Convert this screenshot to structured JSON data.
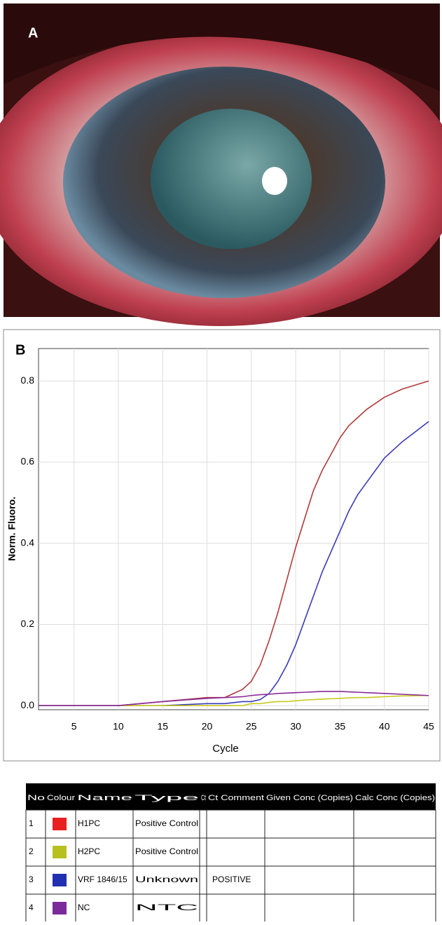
{
  "panels": {
    "a": "A",
    "b": "B"
  },
  "chart_data": {
    "type": "line",
    "xlabel": "Cycle",
    "ylabel": "Norm. Fluoro.",
    "x": [
      1,
      5,
      10,
      15,
      20,
      22,
      24,
      25,
      26,
      27,
      28,
      29,
      30,
      31,
      32,
      33,
      34,
      35,
      36,
      37,
      38,
      40,
      42,
      45
    ],
    "series": [
      {
        "color": "#b03a3a",
        "values": [
          0,
          0,
          0,
          0.01,
          0.02,
          0.02,
          0.04,
          0.06,
          0.1,
          0.16,
          0.23,
          0.31,
          0.39,
          0.46,
          0.53,
          0.58,
          0.62,
          0.66,
          0.69,
          0.71,
          0.73,
          0.76,
          0.78,
          0.8
        ]
      },
      {
        "color": "#3a3ab8",
        "values": [
          0,
          0,
          0,
          0,
          0.005,
          0.005,
          0.01,
          0.01,
          0.015,
          0.03,
          0.06,
          0.1,
          0.15,
          0.21,
          0.27,
          0.33,
          0.38,
          0.43,
          0.48,
          0.52,
          0.55,
          0.61,
          0.65,
          0.7
        ]
      },
      {
        "color": "#c8c820",
        "values": [
          0,
          0,
          0,
          0,
          0,
          0,
          0,
          0.005,
          0.005,
          0.008,
          0.01,
          0.01,
          0.012,
          0.014,
          0.015,
          0.016,
          0.017,
          0.018,
          0.019,
          0.02,
          0.02,
          0.022,
          0.024,
          0.025
        ]
      },
      {
        "color": "#8a2a9a",
        "values": [
          0,
          0,
          0,
          0.01,
          0.018,
          0.02,
          0.022,
          0.025,
          0.027,
          0.028,
          0.03,
          0.031,
          0.032,
          0.033,
          0.034,
          0.035,
          0.035,
          0.035,
          0.034,
          0.033,
          0.032,
          0.03,
          0.028,
          0.025
        ]
      }
    ],
    "xlim": [
      1,
      45
    ],
    "xticks": [
      5,
      10,
      15,
      20,
      25,
      30,
      35,
      40,
      45
    ],
    "ylim": [
      -0.01,
      0.88
    ],
    "yticks": [
      {
        "value": 0,
        "label": "0.0"
      },
      0.2,
      0.4,
      0.6,
      0.8
    ],
    "grid": true
  },
  "table": {
    "header": [
      "No",
      "Colour",
      "Name",
      "Type",
      "Ct",
      "Ct Comment",
      "Given Conc (Copies)",
      "Calc Conc (Copies)"
    ],
    "rows": [
      {
        "no": "1",
        "color": "#e82020",
        "name": "H1PC",
        "type": "Positive Control"
      },
      {
        "no": "2",
        "color": "#b8c020",
        "name": "H2PC",
        "type": "Positive Control"
      },
      {
        "no": "3",
        "color": "#2030b0",
        "name": "VRF 1846/15",
        "type": "Unknown",
        "comment": "POSITIVE"
      },
      {
        "no": "4",
        "color": "#7a2a9a",
        "name": "NC",
        "type": "NTC"
      }
    ]
  }
}
